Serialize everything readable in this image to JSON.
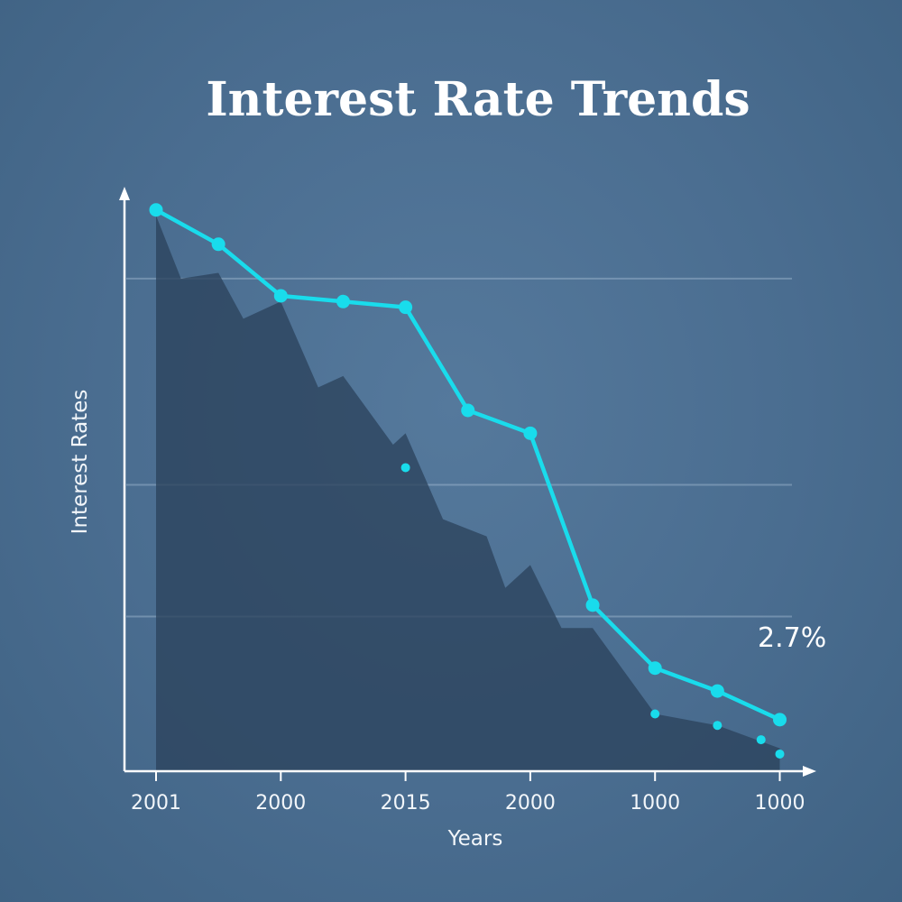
{
  "chart_data": {
    "type": "line",
    "title": "Interest Rate Trends",
    "xlabel": "Years",
    "ylabel": "Interest Rates",
    "x_tick_labels": [
      "2001",
      "2000",
      "2015",
      "2000",
      "1000",
      "1000"
    ],
    "ylim": [
      0,
      10
    ],
    "grid": true,
    "gridlines_y": [
      2.7,
      5.0,
      8.6
    ],
    "annotation": {
      "text": "2.7%",
      "y": 2.7
    },
    "series": [
      {
        "kind": "line",
        "color": "#19dcec",
        "x": [
          0,
          0.5,
          1,
          1.5,
          2,
          2.5,
          3,
          3.5,
          4,
          4.5,
          5
        ],
        "values": [
          9.8,
          9.2,
          8.3,
          8.2,
          8.1,
          6.3,
          5.9,
          2.9,
          1.8,
          1.4,
          0.9
        ]
      },
      {
        "kind": "area",
        "color": "#2b435c",
        "x": [
          0,
          0.2,
          0.5,
          0.7,
          1,
          1.3,
          1.5,
          1.9,
          2,
          2.3,
          2.65,
          2.8,
          3,
          3.25,
          3.5,
          4,
          4.5,
          5
        ],
        "values": [
          9.7,
          8.6,
          8.7,
          7.9,
          8.2,
          6.7,
          6.9,
          5.7,
          5.9,
          4.4,
          4.1,
          3.2,
          3.6,
          2.5,
          2.5,
          1.0,
          0.8,
          0.4
        ]
      },
      {
        "kind": "points",
        "color": "#19dcec",
        "x": [
          2,
          4,
          4.5,
          4.85,
          5
        ],
        "values": [
          5.3,
          1.0,
          0.8,
          0.55,
          0.3
        ]
      }
    ]
  }
}
